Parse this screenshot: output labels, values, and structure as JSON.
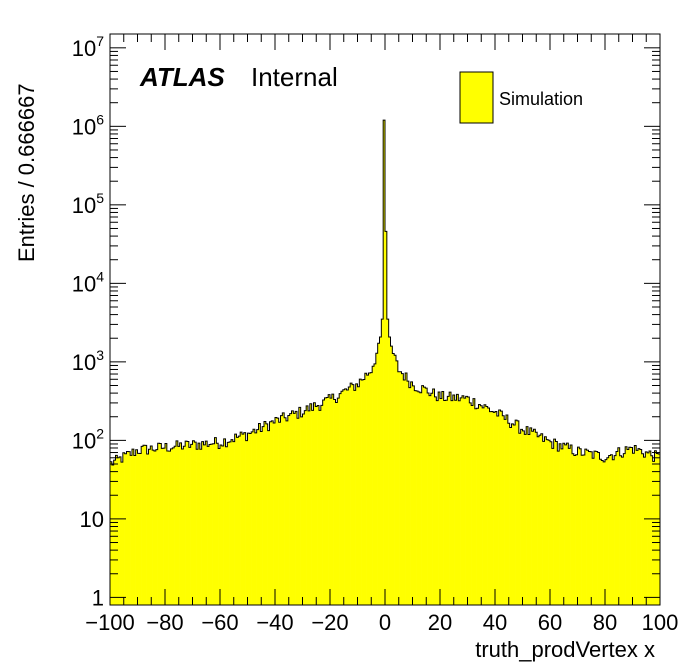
{
  "chart_data": {
    "type": "histogram",
    "ylabel": "Entries / 0.666667",
    "xlabel": "truth_prodVertex x",
    "xlim": [
      -100,
      100
    ],
    "ylim": [
      0.8,
      15000000
    ],
    "log_y": true,
    "bin_width": 0.666667,
    "fill_color": "#ffff00",
    "line_color": "#000000",
    "x_ticks": [
      -100,
      -80,
      -60,
      -40,
      -20,
      0,
      20,
      40,
      60,
      80,
      100
    ],
    "x_tick_labels": [
      "−100",
      "−80",
      "−60",
      "−40",
      "−20",
      "0",
      "20",
      "40",
      "60",
      "80",
      "100"
    ],
    "y_tick_labels": [
      {
        "value": 1,
        "base": "1",
        "exp": ""
      },
      {
        "value": 10,
        "base": "10",
        "exp": ""
      },
      {
        "value": 100,
        "base": "10",
        "exp": "2"
      },
      {
        "value": 1000,
        "base": "10",
        "exp": "3"
      },
      {
        "value": 10000,
        "base": "10",
        "exp": "4"
      },
      {
        "value": 100000,
        "base": "10",
        "exp": "5"
      },
      {
        "value": 1000000,
        "base": "10",
        "exp": "6"
      },
      {
        "value": 10000000,
        "base": "10",
        "exp": "7"
      }
    ],
    "shape_points": [
      [
        -100,
        50
      ],
      [
        -90,
        75
      ],
      [
        -80,
        82
      ],
      [
        -70,
        88
      ],
      [
        -60,
        95
      ],
      [
        -50,
        120
      ],
      [
        -40,
        175
      ],
      [
        -30,
        235
      ],
      [
        -20,
        330
      ],
      [
        -10,
        520
      ],
      [
        -5,
        800
      ],
      [
        -2,
        1600
      ],
      [
        -1,
        3500
      ],
      [
        -0.5,
        9000
      ],
      [
        0,
        1200000
      ],
      [
        0.5,
        9000
      ],
      [
        1,
        3500
      ],
      [
        2,
        1600
      ],
      [
        5,
        800
      ],
      [
        10,
        520
      ],
      [
        20,
        360
      ],
      [
        30,
        340
      ],
      [
        40,
        230
      ],
      [
        50,
        140
      ],
      [
        60,
        95
      ],
      [
        70,
        72
      ],
      [
        80,
        62
      ],
      [
        90,
        80
      ],
      [
        100,
        60
      ]
    ],
    "legend": [
      {
        "label": "Simulation",
        "color": "#ffff00"
      }
    ],
    "annotation": {
      "bold": "ATLAS",
      "normal": "Internal"
    }
  }
}
